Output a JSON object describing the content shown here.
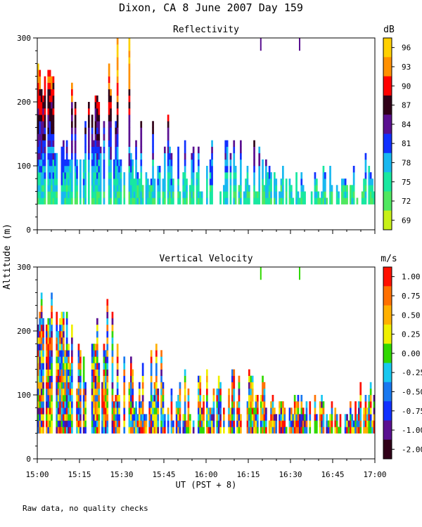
{
  "figure": {
    "title": "Dixon, CA  8 June 2007  Day 159",
    "ylabel": "Altitude (m)",
    "footer": "Raw data, no quality checks"
  },
  "chart_data": [
    {
      "type": "heatmap",
      "title": "Reflectivity",
      "xlabel": "UT  (PST + 8)",
      "ylabel": "Altitude (m)",
      "xlim": [
        15.0,
        17.0
      ],
      "ylim": [
        0,
        300
      ],
      "x_ticklabels": [
        "15:00",
        "15:15",
        "15:30",
        "15:45",
        "16:00",
        "16:15",
        "16:30",
        "16:45",
        "17:00"
      ],
      "y_ticklabels": [
        "0",
        "100",
        "200",
        "300"
      ],
      "colorbar": {
        "unit": "dB",
        "labels": [
          "96",
          "93",
          "90",
          "87",
          "84",
          "81",
          "78",
          "75",
          "72",
          "69"
        ],
        "colors": [
          "#ffd000",
          "#ff9000",
          "#ff0000",
          "#300018",
          "#5a1090",
          "#1030ff",
          "#18b8f0",
          "#18e8a0",
          "#50e860",
          "#c8f018"
        ]
      },
      "shown_range_m": [
        40,
        300
      ]
    },
    {
      "type": "heatmap",
      "title": "Vertical Velocity",
      "xlabel": "UT  (PST + 8)",
      "ylabel": "Altitude (m)",
      "xlim": [
        15.0,
        17.0
      ],
      "ylim": [
        0,
        300
      ],
      "x_ticklabels": [
        "15:00",
        "15:15",
        "15:30",
        "15:45",
        "16:00",
        "16:15",
        "16:30",
        "16:45",
        "17:00"
      ],
      "y_ticklabels": [
        "0",
        "100",
        "200",
        "300"
      ],
      "colorbar": {
        "unit": "m/s",
        "labels": [
          "1.00",
          "0.75",
          "0.50",
          "0.25",
          "0.00",
          "-0.25",
          "-0.50",
          "-0.75",
          "-1.00",
          "-2.00"
        ],
        "colors": [
          "#ff1000",
          "#ff7000",
          "#ffb000",
          "#f0f000",
          "#30d800",
          "#18c8f0",
          "#1878f0",
          "#1030ff",
          "#5a1090",
          "#300018"
        ]
      },
      "shown_range_m": [
        40,
        300
      ]
    }
  ]
}
